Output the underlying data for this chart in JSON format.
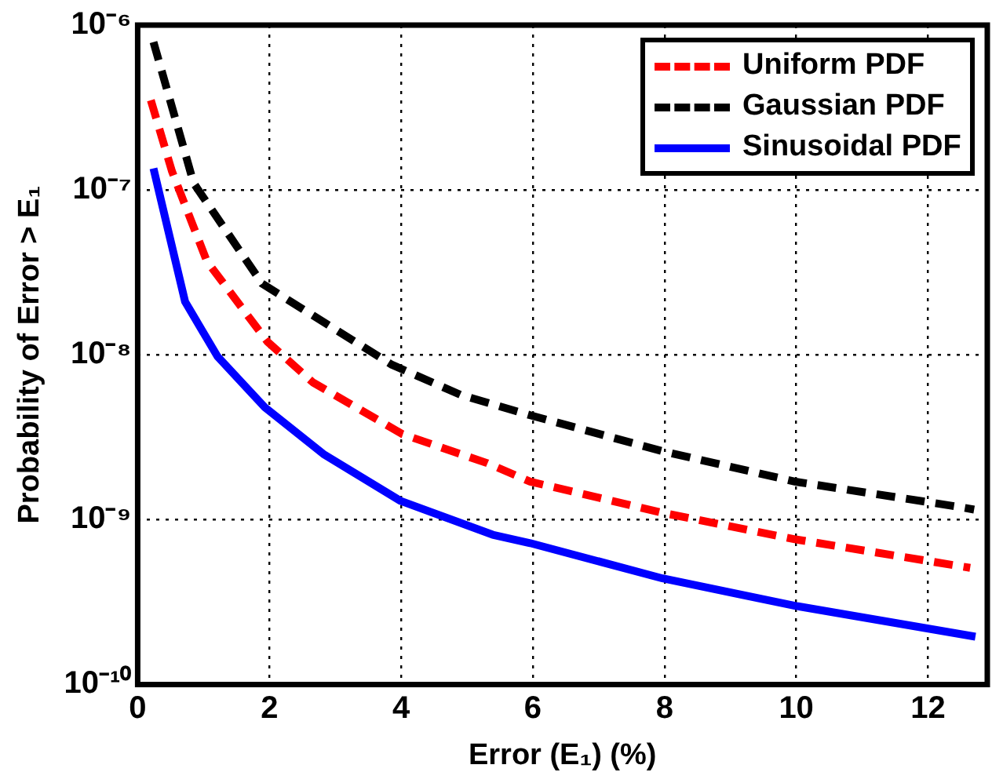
{
  "chart_data": {
    "type": "line",
    "xlabel": "Error (E₁) (%)",
    "ylabel": "Probability of Error > E₁",
    "xlim": [
      0,
      12.9
    ],
    "xticks": [
      0,
      2,
      4,
      6,
      8,
      10,
      12
    ],
    "ylim": [
      1e-10,
      1e-06
    ],
    "yticks": [
      {
        "value": 1e-10,
        "label": "10⁻¹⁰"
      },
      {
        "value": 1e-09,
        "label": "10⁻⁹"
      },
      {
        "value": 1e-08,
        "label": "10⁻⁸"
      },
      {
        "value": 1e-07,
        "label": "10⁻⁷"
      },
      {
        "value": 1e-06,
        "label": "10⁻⁶"
      }
    ],
    "log": "y",
    "grid": true,
    "legend": "top right",
    "marker": "none",
    "series": [
      {
        "name": "Uniform PDF",
        "color": "#ff0000",
        "line_style": "dashed",
        "x": [
          0.2,
          0.52,
          1.05,
          1.97,
          2.66,
          4.02,
          5.31,
          5.96,
          7.97,
          9.98,
          12.64
        ],
        "values": [
          3.5e-07,
          1.3e-07,
          3.7e-08,
          1.2e-08,
          6.8e-09,
          3.3e-09,
          2.2e-09,
          1.7e-09,
          1.1e-09,
          7.6e-10,
          5.1e-10
        ]
      },
      {
        "name": "Gaussian PDF",
        "color": "#000000",
        "line_style": "dashed",
        "x": [
          0.24,
          0.85,
          1.89,
          3.3,
          3.86,
          4.91,
          5.96,
          7.97,
          9.98,
          12.44,
          12.7
        ],
        "values": [
          7.9e-07,
          1.1e-07,
          2.7e-08,
          1.2e-08,
          8.7e-09,
          5.7e-09,
          4.3e-09,
          2.6e-09,
          1.7e-09,
          1.2e-09,
          1.15e-09
        ]
      },
      {
        "name": "Sinusoidal PDF",
        "color": "#0000ff",
        "line_style": "solid",
        "x": [
          0.24,
          0.72,
          1.21,
          1.93,
          2.82,
          3.99,
          5.39,
          5.96,
          7.97,
          9.98,
          12.72
        ],
        "values": [
          1.35e-07,
          2.1e-08,
          9.8e-09,
          4.8e-09,
          2.5e-09,
          1.3e-09,
          8.1e-10,
          7.2e-10,
          4.4e-10,
          3e-10,
          1.95e-10
        ]
      }
    ]
  }
}
